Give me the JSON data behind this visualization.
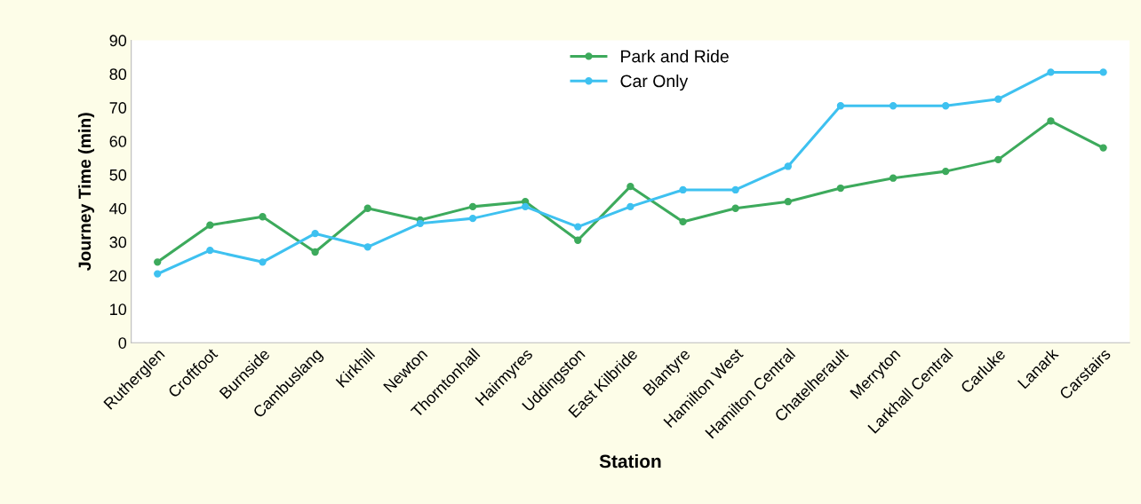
{
  "chart_data": {
    "type": "line",
    "xlabel": "Station",
    "ylabel": "Journey Time (min)",
    "categories": [
      "Rutherglen",
      "Croftfoot",
      "Burnside",
      "Cambuslang",
      "Kirkhill",
      "Newton",
      "Thorntonhall",
      "Hairmyres",
      "Uddingston",
      "East Kilbride",
      "Blantyre",
      "Hamilton West",
      "Hamilton Central",
      "Chatelherault",
      "Merryton",
      "Larkhall Central",
      "Carluke",
      "Lanark",
      "Carstairs"
    ],
    "series": [
      {
        "name": "Park and Ride",
        "color": "#3daa5c",
        "values": [
          24,
          35,
          37.5,
          27,
          40,
          36.5,
          40.5,
          42,
          30.5,
          46.5,
          36,
          40,
          42,
          46,
          49,
          51,
          54.5,
          66,
          58
        ]
      },
      {
        "name": "Car Only",
        "color": "#3ec1f0",
        "values": [
          20.5,
          27.5,
          24,
          32.5,
          28.5,
          35.5,
          37,
          40.5,
          34.5,
          40.5,
          45.5,
          45.5,
          52.5,
          70.5,
          70.5,
          70.5,
          72.5,
          80.5,
          80.5
        ]
      }
    ],
    "ylim": [
      0,
      90
    ],
    "yticks": [
      0,
      10,
      20,
      30,
      40,
      50,
      60,
      70,
      80,
      90
    ],
    "grid": false,
    "legend": "top",
    "marker": "circle",
    "line_style": "solid"
  }
}
